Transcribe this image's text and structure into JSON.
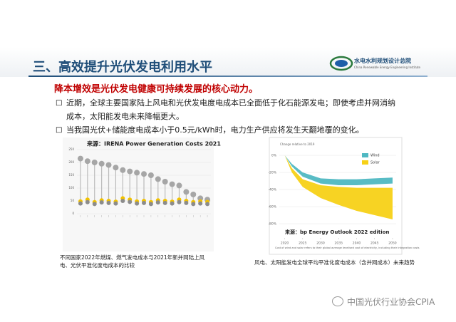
{
  "header": {
    "title": "三、高效提升光伏发电利用水平",
    "logo_name": "水电水利规划设计总院",
    "logo_english": "China Renewable Energy Engineering Institute"
  },
  "subtitle": "降本增效是光伏发电健康可持续发展的核心动力。",
  "bullets": [
    "近期，全球主要国家陆上风电和光伏发电度电成本已全面低于化石能源发电；即使考虑并网消纳成本，太阳能发电未来降幅更大。",
    "当我国光伏+储能度电成本小于0.5元/kWh时，电力生产供应将发生天翻地覆的变化。"
  ],
  "charts": [
    {
      "type": "lollipop",
      "source": "来源：IRENA Power Generation Costs 2021",
      "categories": [
        null,
        null,
        null,
        null,
        null,
        null,
        null,
        null,
        null,
        null,
        null,
        null,
        null,
        null,
        null,
        null,
        null,
        null,
        null
      ],
      "ylim": [
        0,
        250
      ],
      "yticks": [
        0,
        50,
        100,
        150,
        200,
        250
      ],
      "series": [
        {
          "color": "#a6a6a6",
          "values": [
            215,
            205,
            200,
            195,
            190,
            180,
            170,
            165,
            160,
            155,
            150,
            135,
            125,
            115,
            110,
            85,
            75,
            60,
            55
          ]
        },
        {
          "color": "#f2c200",
          "values": [
            48,
            55,
            45,
            52,
            50,
            47,
            60,
            55,
            48,
            50,
            45,
            52,
            50,
            47,
            55,
            50,
            45,
            48,
            46
          ]
        },
        {
          "color": "#8c8c8c",
          "values": [
            40,
            45,
            38,
            44,
            42,
            40,
            50,
            46,
            40,
            42,
            38,
            44,
            42,
            40,
            45,
            42,
            38,
            40,
            38
          ]
        }
      ],
      "caption": "不同国家2022年燃煤、燃气发电成本与2021年新并网陆上风电、光伏平准化度电成本的比较"
    },
    {
      "type": "area-band",
      "axis_title": "Change relative to 2019",
      "source": "来源：bp Energy Outlook 2022 edition",
      "footnote": "Cost of wind and solar refers to their global average levelised cost of electricity, including their integration costs",
      "x": [
        2020,
        2022,
        2025,
        2030,
        2035,
        2040,
        2045,
        2050
      ],
      "xlim": [
        2018.5,
        2051
      ],
      "xticks": [
        2020,
        2025,
        2030,
        2035,
        2040,
        2045,
        2050
      ],
      "ylim": [
        -85,
        5
      ],
      "yticks": [
        {
          "value": 0,
          "label": "0%"
        },
        {
          "value": -20,
          "label": "-20%"
        },
        {
          "value": -40,
          "label": "-40%"
        },
        {
          "value": -60,
          "label": "-60%"
        },
        {
          "value": -80,
          "label": "-80%"
        }
      ],
      "series": [
        {
          "name": "Wind",
          "color": "#4fb8c2",
          "high": [
            0,
            -10,
            -20,
            -27,
            -28,
            -28,
            -27,
            -26
          ],
          "low": [
            0,
            -13,
            -25,
            -33,
            -35,
            -35,
            -34,
            -33
          ]
        },
        {
          "name": "Solar",
          "color": "#f7d117",
          "high": [
            0,
            -15,
            -28,
            -35,
            -37,
            -38,
            -38,
            -38
          ],
          "low": [
            0,
            -20,
            -37,
            -50,
            -58,
            -65,
            -70,
            -75
          ]
        }
      ],
      "caption": "风电、太阳能发电全球平均平准化度电成本（含并网成本）未来趋势"
    }
  ],
  "watermark": "中国光伏行业协会CPIA"
}
